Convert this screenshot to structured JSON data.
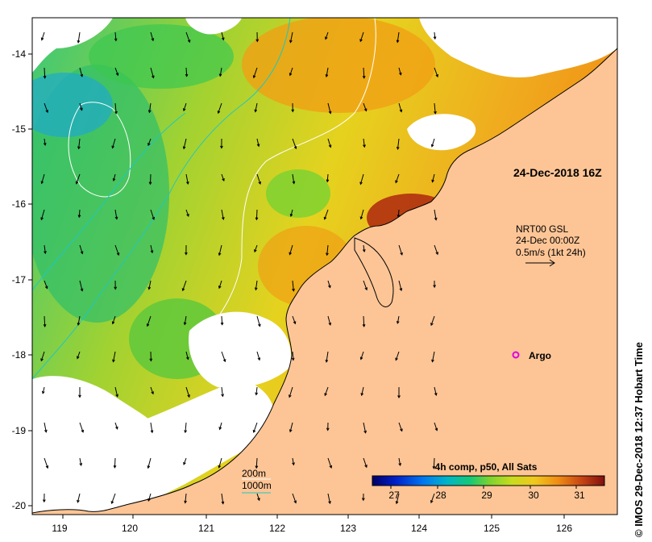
{
  "map": {
    "lon_ticks": [
      "119",
      "120",
      "121",
      "122",
      "123",
      "124",
      "125",
      "126"
    ],
    "lat_ticks": [
      "-14",
      "-15",
      "-16",
      "-17",
      "-18",
      "-19",
      "-20"
    ],
    "lon_range": [
      118.6,
      126.8
    ],
    "lat_range": [
      -20.1,
      -13.55
    ]
  },
  "annotations": {
    "pass_time": "24-Dec-2018 16Z",
    "current_source": "NRT00 GSL",
    "current_time": "24-Dec 00:00Z",
    "current_scale": "0.5m/s (1kt 24h)",
    "argo_label": "Argo"
  },
  "isobaths": {
    "label_200": "200m",
    "label_1000": "1000m",
    "color_200": "#ffffff",
    "color_1000": "#1ec8c0"
  },
  "colorbar": {
    "title": "4h comp, p50, All Sats",
    "ticks": [
      "27",
      "28",
      "29",
      "30",
      "31"
    ],
    "min": 26.6,
    "max": 31.6,
    "colors": [
      "#000066",
      "#0020c8",
      "#0078f0",
      "#00b4c8",
      "#14c878",
      "#78d232",
      "#c8dc1e",
      "#f0c81e",
      "#f08c14",
      "#c84614",
      "#a01e10",
      "#801010"
    ]
  },
  "credit": "© IMOS 29-Dec-2018 12:37 Hobart Time",
  "colors": {
    "land": "#fdc596",
    "coast": "#000000",
    "frame": "#000000",
    "no_data": "#ffffff",
    "argo": "#e000e0"
  }
}
